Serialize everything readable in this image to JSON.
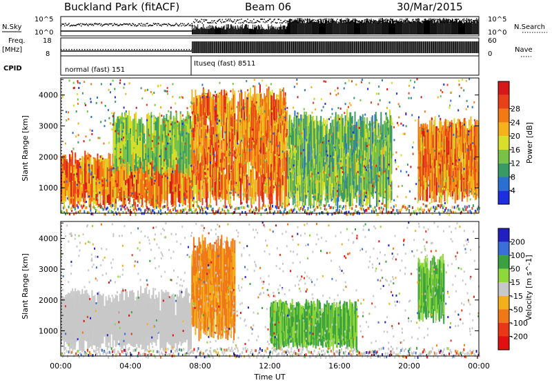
{
  "header": {
    "title": "Buckland Park (fitACF)",
    "beam": "Beam 06",
    "date": "30/Mar/2015"
  },
  "summary_panels": {
    "nsky_label": "N.Sky",
    "nsky_ticks": [
      "10^5",
      "10^0"
    ],
    "nsearch_ticks": [
      "10^5",
      "10^0"
    ],
    "nsearch_label": "N.Search",
    "freq_label": "Freq.",
    "freq_unit": "[MHz]",
    "freq_ticks": [
      "18",
      "8"
    ],
    "nave_ticks": [
      "60",
      "0"
    ],
    "nave_label": "Nave",
    "cpid_label": "CPID",
    "cpid_segments": [
      {
        "label": "normal (fast) 151",
        "start_hour": 0,
        "end_hour": 7.55
      },
      {
        "label": "Ituseq (fast) 8511",
        "start_hour": 7.55,
        "end_hour": 24
      }
    ]
  },
  "chart_data": [
    {
      "type": "heatmap",
      "name": "power",
      "xlabel": "",
      "ylabel": "Slant Range [km]",
      "xlim": [
        0,
        24
      ],
      "ylim": [
        180,
        4550
      ],
      "yticks": [
        1000,
        2000,
        3000,
        4000
      ],
      "colorbar": {
        "label": "Power [dB]",
        "ticks": [
          "4",
          "8",
          "12",
          "16",
          "20",
          "24",
          "28"
        ],
        "range": [
          0,
          32
        ],
        "colors": [
          "#1c2ee0",
          "#2b6fd0",
          "#3a9a64",
          "#78c24a",
          "#d8df2a",
          "#f6b21c",
          "#f27a14",
          "#e8411a",
          "#d61818"
        ]
      },
      "features": [
        {
          "feature": "E/F band echoes 00-07 UT",
          "x_range_h": [
            0,
            7.5
          ],
          "range_km": [
            800,
            1700
          ],
          "power_db": [
            16,
            30
          ]
        },
        {
          "feature": "upper echoes 03-07 UT",
          "x_range_h": [
            3,
            7.5
          ],
          "range_km": [
            1900,
            3000
          ],
          "power_db": [
            8,
            18
          ]
        },
        {
          "feature": "broad echoes 07.5-13 UT",
          "x_range_h": [
            7.5,
            13
          ],
          "range_km": [
            800,
            3800
          ],
          "power_db": [
            16,
            30
          ]
        },
        {
          "feature": "echoes 13-19 UT",
          "x_range_h": [
            13,
            19
          ],
          "range_km": [
            800,
            3000
          ],
          "power_db": [
            6,
            18
          ]
        },
        {
          "feature": "evening echoes 20.5-24 UT",
          "x_range_h": [
            20.5,
            24
          ],
          "range_km": [
            1000,
            2800
          ],
          "power_db": [
            16,
            30
          ]
        }
      ]
    },
    {
      "type": "heatmap",
      "name": "velocity",
      "xlabel": "Time UT",
      "ylabel": "Slant Range [km]",
      "xlim": [
        0,
        24
      ],
      "xticks": [
        "00:00",
        "04:00",
        "08:00",
        "12:00",
        "16:00",
        "20:00",
        "00:00"
      ],
      "ylim": [
        180,
        4550
      ],
      "yticks": [
        1000,
        2000,
        3000,
        4000
      ],
      "colorbar": {
        "label": "Velocity [m s^-1]",
        "ticks": [
          "200",
          "100",
          "50",
          "15",
          "-15",
          "-50",
          "-100",
          "-200"
        ],
        "colors": [
          "#2020c0",
          "#3a6fd8",
          "#3aa040",
          "#8fd83a",
          "#c8c8c8",
          "#f2b01c",
          "#f07818",
          "#e83818",
          "#e01010"
        ]
      },
      "features": [
        {
          "feature": "ground scatter 00-07 UT",
          "x_range_h": [
            0,
            7.5
          ],
          "range_km": [
            800,
            1900
          ],
          "velocity": [
            -15,
            15
          ]
        },
        {
          "feature": "orange echoes 07.5-10 UT",
          "x_range_h": [
            7.5,
            10
          ],
          "range_km": [
            1200,
            3600
          ],
          "velocity": [
            -100,
            -15
          ]
        },
        {
          "feature": "green echoes 12-17 UT",
          "x_range_h": [
            12,
            17
          ],
          "range_km": [
            900,
            1500
          ],
          "velocity": [
            15,
            100
          ]
        },
        {
          "feature": "evening green echoes 20.5-22 UT",
          "x_range_h": [
            20.5,
            22
          ],
          "range_km": [
            1700,
            3000
          ],
          "velocity": [
            15,
            100
          ]
        }
      ]
    }
  ]
}
